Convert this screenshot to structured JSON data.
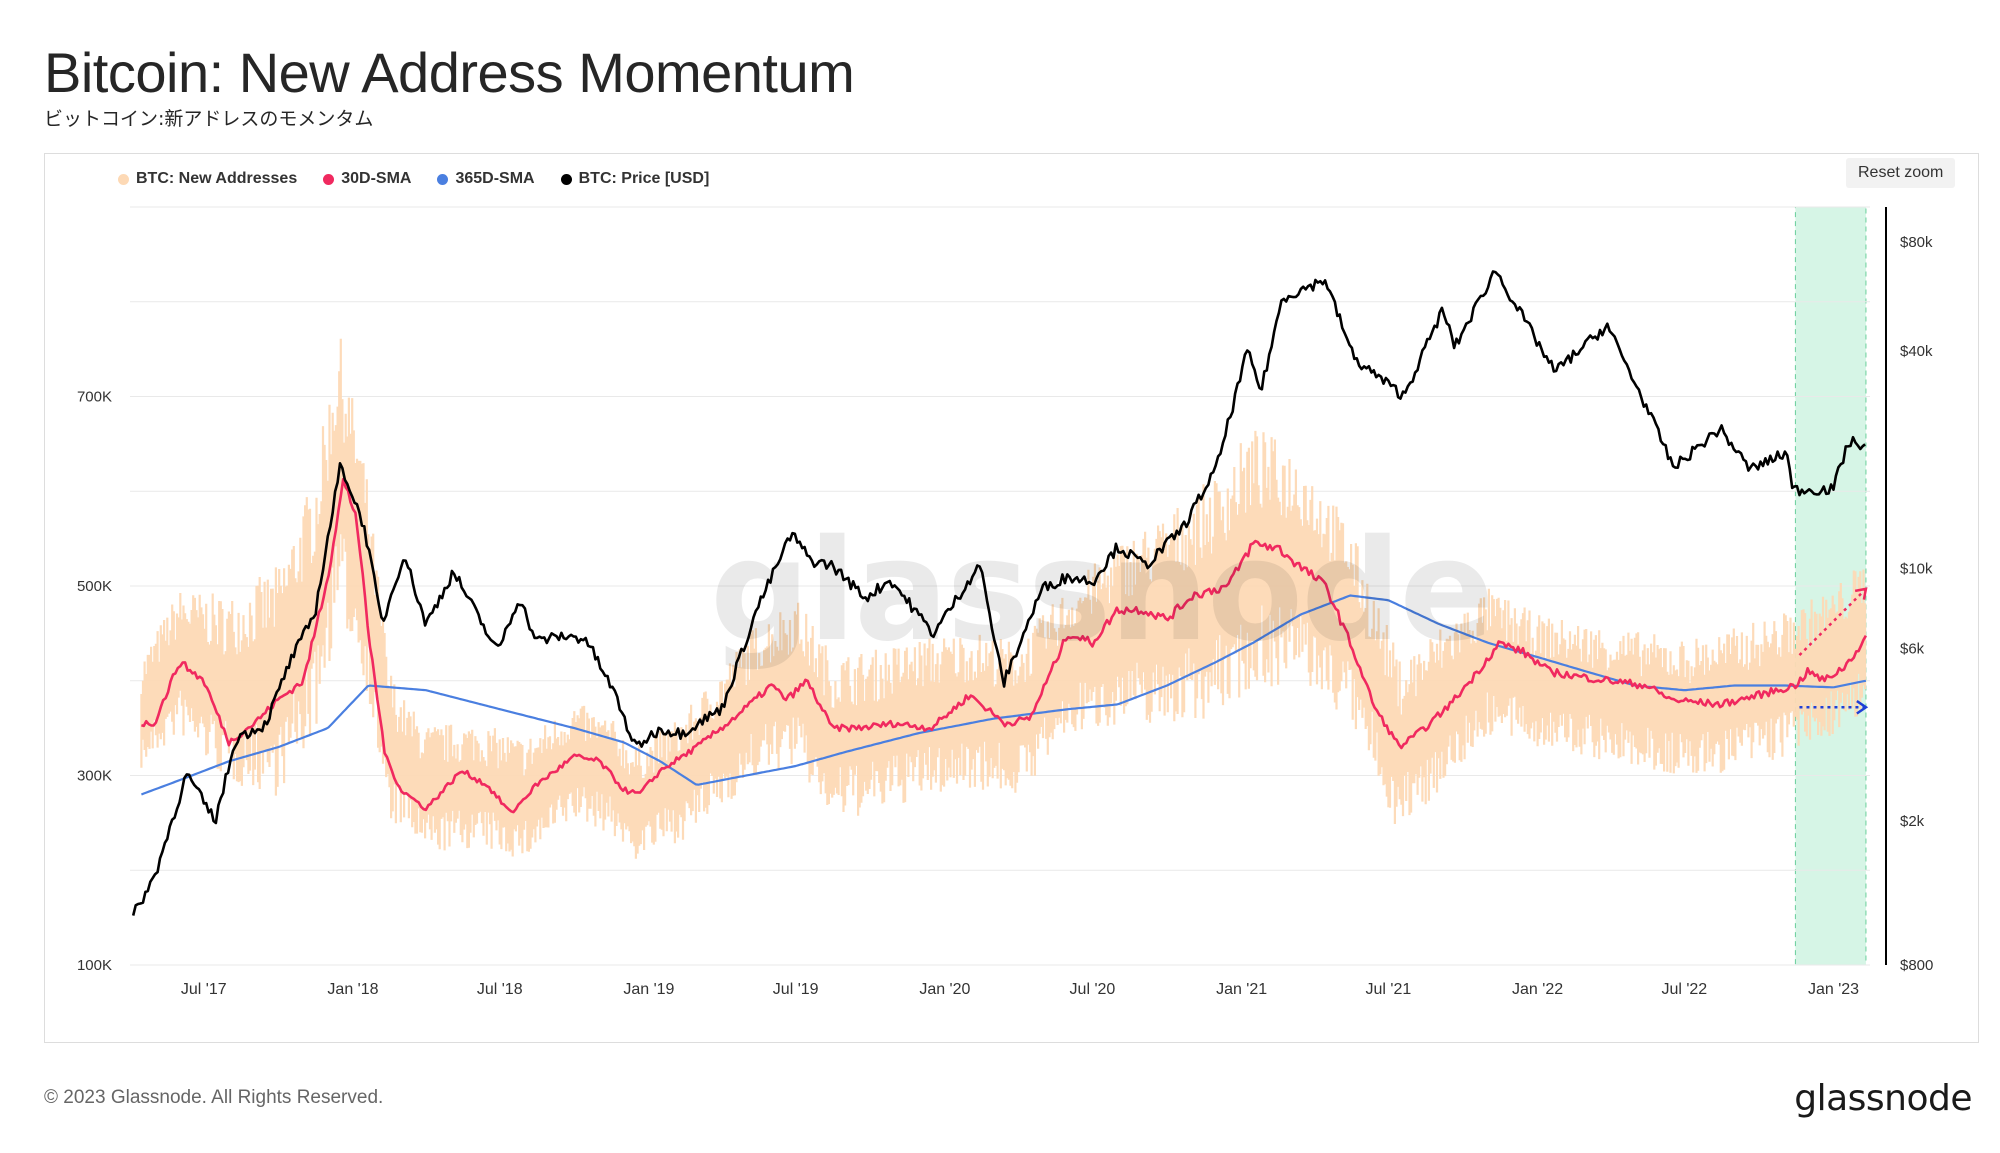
{
  "header": {
    "title": "Bitcoin: New Address Momentum",
    "subtitle": "ビットコイン:新アドレスのモメンタム"
  },
  "toolbar": {
    "reset_zoom_label": "Reset zoom"
  },
  "watermark": "glassnode",
  "footer": {
    "copyright": "© 2023 Glassnode. All Rights Reserved.",
    "brand": "glassnode"
  },
  "colors": {
    "new_addresses": "#fdd9b5",
    "sma30": "#f0295f",
    "sma365": "#4a7fe0",
    "price": "#000000",
    "highlight": "#d6f5e6",
    "arrow_red": "#f0295f",
    "arrow_blue": "#1f3fd6"
  },
  "chart_data": {
    "type": "line",
    "legend_position": "top-left",
    "grid": true,
    "x_range": [
      "2017-04-01",
      "2023-02-15"
    ],
    "x_ticks": [
      {
        "date": "2017-07-01",
        "label": "Jul '17"
      },
      {
        "date": "2018-01-01",
        "label": "Jan '18"
      },
      {
        "date": "2018-07-01",
        "label": "Jul '18"
      },
      {
        "date": "2019-01-01",
        "label": "Jan '19"
      },
      {
        "date": "2019-07-01",
        "label": "Jul '19"
      },
      {
        "date": "2020-01-01",
        "label": "Jan '20"
      },
      {
        "date": "2020-07-01",
        "label": "Jul '20"
      },
      {
        "date": "2021-01-01",
        "label": "Jan '21"
      },
      {
        "date": "2021-07-01",
        "label": "Jul '21"
      },
      {
        "date": "2022-01-01",
        "label": "Jan '22"
      },
      {
        "date": "2022-07-01",
        "label": "Jul '22"
      },
      {
        "date": "2023-01-01",
        "label": "Jan '23"
      }
    ],
    "y_left": {
      "range": [
        100000,
        900000
      ],
      "ticks": [
        {
          "value": 100000,
          "label": "100K"
        },
        {
          "value": 300000,
          "label": "300K"
        },
        {
          "value": 500000,
          "label": "500K"
        },
        {
          "value": 700000,
          "label": "700K"
        }
      ]
    },
    "y_right": {
      "scale": "log",
      "range": [
        800,
        100000
      ],
      "ticks": [
        {
          "value": 800,
          "label": "$800"
        },
        {
          "value": 2000,
          "label": "$2k"
        },
        {
          "value": 6000,
          "label": "$6k"
        },
        {
          "value": 10000,
          "label": "$10k"
        },
        {
          "value": 40000,
          "label": "$40k"
        },
        {
          "value": 80000,
          "label": "$80k"
        }
      ]
    },
    "highlight_range": [
      "2022-11-15",
      "2023-02-10"
    ],
    "series": [
      {
        "name": "BTC: New Addresses",
        "axis": "left",
        "kind": "band",
        "points": [
          [
            "2017-04-15",
            365000
          ],
          [
            "2017-06-01",
            420000
          ],
          [
            "2017-08-01",
            390000
          ],
          [
            "2017-10-01",
            400000
          ],
          [
            "2017-11-15",
            480000
          ],
          [
            "2017-12-15",
            620000
          ],
          [
            "2018-01-15",
            520000
          ],
          [
            "2018-02-15",
            330000
          ],
          [
            "2018-04-01",
            285000
          ],
          [
            "2018-06-01",
            290000
          ],
          [
            "2018-08-01",
            275000
          ],
          [
            "2018-10-01",
            315000
          ],
          [
            "2018-11-15",
            300000
          ],
          [
            "2018-12-15",
            270000
          ],
          [
            "2019-02-15",
            300000
          ],
          [
            "2019-04-01",
            340000
          ],
          [
            "2019-05-15",
            380000
          ],
          [
            "2019-07-01",
            400000
          ],
          [
            "2019-08-15",
            340000
          ],
          [
            "2019-10-01",
            345000
          ],
          [
            "2019-12-01",
            360000
          ],
          [
            "2020-02-01",
            370000
          ],
          [
            "2020-04-01",
            360000
          ],
          [
            "2020-06-01",
            420000
          ],
          [
            "2020-08-01",
            450000
          ],
          [
            "2020-10-01",
            465000
          ],
          [
            "2020-12-01",
            490000
          ],
          [
            "2021-01-15",
            530000
          ],
          [
            "2021-03-15",
            520000
          ],
          [
            "2021-05-15",
            460000
          ],
          [
            "2021-07-15",
            330000
          ],
          [
            "2021-09-01",
            370000
          ],
          [
            "2021-11-01",
            420000
          ],
          [
            "2022-01-01",
            400000
          ],
          [
            "2022-03-01",
            390000
          ],
          [
            "2022-05-01",
            380000
          ],
          [
            "2022-07-01",
            370000
          ],
          [
            "2022-09-01",
            380000
          ],
          [
            "2022-11-01",
            395000
          ],
          [
            "2023-01-01",
            420000
          ],
          [
            "2023-02-10",
            450000
          ]
        ],
        "spread": [
          [
            "2017-04-15",
            60000
          ],
          [
            "2017-12-15",
            150000
          ],
          [
            "2018-03-01",
            70000
          ],
          [
            "2019-01-01",
            60000
          ],
          [
            "2019-07-01",
            90000
          ],
          [
            "2020-06-01",
            80000
          ],
          [
            "2021-01-15",
            140000
          ],
          [
            "2021-06-01",
            100000
          ],
          [
            "2022-01-01",
            70000
          ],
          [
            "2023-02-10",
            80000
          ]
        ]
      },
      {
        "name": "30D-SMA",
        "axis": "left",
        "kind": "line",
        "points": [
          [
            "2017-04-15",
            355000
          ],
          [
            "2017-05-01",
            355000
          ],
          [
            "2017-06-01",
            420000
          ],
          [
            "2017-07-01",
            400000
          ],
          [
            "2017-08-01",
            335000
          ],
          [
            "2017-09-01",
            355000
          ],
          [
            "2017-10-01",
            380000
          ],
          [
            "2017-11-01",
            400000
          ],
          [
            "2017-12-01",
            510000
          ],
          [
            "2017-12-20",
            610000
          ],
          [
            "2018-01-05",
            575000
          ],
          [
            "2018-01-20",
            450000
          ],
          [
            "2018-02-10",
            320000
          ],
          [
            "2018-03-01",
            285000
          ],
          [
            "2018-04-01",
            265000
          ],
          [
            "2018-05-15",
            305000
          ],
          [
            "2018-06-15",
            290000
          ],
          [
            "2018-07-15",
            260000
          ],
          [
            "2018-08-15",
            290000
          ],
          [
            "2018-10-01",
            320000
          ],
          [
            "2018-11-01",
            315000
          ],
          [
            "2018-12-01",
            285000
          ],
          [
            "2018-12-20",
            280000
          ],
          [
            "2019-01-15",
            305000
          ],
          [
            "2019-03-01",
            330000
          ],
          [
            "2019-04-15",
            360000
          ],
          [
            "2019-06-01",
            395000
          ],
          [
            "2019-06-20",
            380000
          ],
          [
            "2019-07-15",
            400000
          ],
          [
            "2019-08-15",
            350000
          ],
          [
            "2019-09-15",
            350000
          ],
          [
            "2019-11-01",
            355000
          ],
          [
            "2019-12-15",
            350000
          ],
          [
            "2020-02-01",
            385000
          ],
          [
            "2020-03-15",
            355000
          ],
          [
            "2020-04-15",
            360000
          ],
          [
            "2020-06-01",
            450000
          ],
          [
            "2020-07-01",
            440000
          ],
          [
            "2020-08-01",
            475000
          ],
          [
            "2020-09-01",
            475000
          ],
          [
            "2020-10-01",
            465000
          ],
          [
            "2020-11-01",
            490000
          ],
          [
            "2020-12-15",
            500000
          ],
          [
            "2021-01-15",
            545000
          ],
          [
            "2021-02-15",
            540000
          ],
          [
            "2021-03-15",
            520000
          ],
          [
            "2021-04-15",
            500000
          ],
          [
            "2021-05-15",
            440000
          ],
          [
            "2021-06-15",
            370000
          ],
          [
            "2021-07-15",
            330000
          ],
          [
            "2021-08-15",
            350000
          ],
          [
            "2021-09-15",
            375000
          ],
          [
            "2021-10-15",
            405000
          ],
          [
            "2021-11-15",
            440000
          ],
          [
            "2021-12-15",
            430000
          ],
          [
            "2022-01-15",
            410000
          ],
          [
            "2022-02-15",
            405000
          ],
          [
            "2022-04-01",
            400000
          ],
          [
            "2022-05-15",
            395000
          ],
          [
            "2022-06-15",
            380000
          ],
          [
            "2022-08-15",
            375000
          ],
          [
            "2022-10-01",
            385000
          ],
          [
            "2022-11-15",
            395000
          ],
          [
            "2022-12-01",
            410000
          ],
          [
            "2022-12-20",
            400000
          ],
          [
            "2023-01-15",
            415000
          ],
          [
            "2023-02-10",
            445000
          ]
        ]
      },
      {
        "name": "365D-SMA",
        "axis": "left",
        "kind": "line",
        "points": [
          [
            "2017-04-15",
            280000
          ],
          [
            "2017-06-01",
            295000
          ],
          [
            "2017-08-01",
            315000
          ],
          [
            "2017-10-01",
            330000
          ],
          [
            "2017-12-01",
            350000
          ],
          [
            "2018-01-20",
            395000
          ],
          [
            "2018-04-01",
            390000
          ],
          [
            "2018-07-01",
            370000
          ],
          [
            "2018-10-01",
            350000
          ],
          [
            "2018-12-01",
            335000
          ],
          [
            "2019-01-15",
            315000
          ],
          [
            "2019-03-01",
            290000
          ],
          [
            "2019-05-01",
            300000
          ],
          [
            "2019-07-01",
            310000
          ],
          [
            "2019-09-01",
            325000
          ],
          [
            "2019-12-01",
            345000
          ],
          [
            "2020-03-01",
            360000
          ],
          [
            "2020-06-01",
            370000
          ],
          [
            "2020-08-01",
            375000
          ],
          [
            "2020-10-01",
            395000
          ],
          [
            "2020-12-01",
            420000
          ],
          [
            "2021-01-15",
            440000
          ],
          [
            "2021-03-15",
            470000
          ],
          [
            "2021-05-15",
            490000
          ],
          [
            "2021-07-01",
            485000
          ],
          [
            "2021-09-01",
            460000
          ],
          [
            "2021-11-01",
            440000
          ],
          [
            "2022-01-01",
            425000
          ],
          [
            "2022-03-01",
            410000
          ],
          [
            "2022-05-01",
            395000
          ],
          [
            "2022-07-01",
            390000
          ],
          [
            "2022-09-01",
            395000
          ],
          [
            "2022-11-01",
            395000
          ],
          [
            "2023-01-01",
            393000
          ],
          [
            "2023-02-10",
            400000
          ]
        ]
      },
      {
        "name": "BTC: Price [USD]",
        "axis": "right",
        "kind": "line",
        "points": [
          [
            "2017-04-05",
            1100
          ],
          [
            "2017-05-01",
            1400
          ],
          [
            "2017-06-10",
            2700
          ],
          [
            "2017-07-15",
            2000
          ],
          [
            "2017-08-10",
            3400
          ],
          [
            "2017-09-15",
            3700
          ],
          [
            "2017-10-15",
            5500
          ],
          [
            "2017-11-15",
            7500
          ],
          [
            "2017-12-17",
            19500
          ],
          [
            "2018-01-15",
            13000
          ],
          [
            "2018-02-06",
            7000
          ],
          [
            "2018-03-05",
            11000
          ],
          [
            "2018-04-01",
            7000
          ],
          [
            "2018-05-05",
            9800
          ],
          [
            "2018-06-28",
            5900
          ],
          [
            "2018-07-25",
            8300
          ],
          [
            "2018-08-15",
            6300
          ],
          [
            "2018-09-15",
            6500
          ],
          [
            "2018-10-15",
            6400
          ],
          [
            "2018-11-20",
            4500
          ],
          [
            "2018-12-15",
            3200
          ],
          [
            "2019-01-15",
            3600
          ],
          [
            "2019-02-10",
            3500
          ],
          [
            "2019-04-01",
            4100
          ],
          [
            "2019-05-15",
            7800
          ],
          [
            "2019-06-26",
            12500
          ],
          [
            "2019-07-20",
            10500
          ],
          [
            "2019-08-15",
            10200
          ],
          [
            "2019-09-25",
            8300
          ],
          [
            "2019-10-26",
            9300
          ],
          [
            "2019-12-18",
            6600
          ],
          [
            "2020-02-13",
            10300
          ],
          [
            "2020-03-13",
            4800
          ],
          [
            "2020-04-30",
            8800
          ],
          [
            "2020-06-01",
            9500
          ],
          [
            "2020-07-01",
            9200
          ],
          [
            "2020-08-01",
            11500
          ],
          [
            "2020-09-05",
            10200
          ],
          [
            "2020-10-21",
            13000
          ],
          [
            "2020-12-01",
            19000
          ],
          [
            "2021-01-08",
            40000
          ],
          [
            "2021-01-25",
            31000
          ],
          [
            "2021-02-20",
            56000
          ],
          [
            "2021-04-14",
            63000
          ],
          [
            "2021-05-20",
            38000
          ],
          [
            "2021-07-20",
            30000
          ],
          [
            "2021-09-06",
            52000
          ],
          [
            "2021-09-21",
            41000
          ],
          [
            "2021-11-10",
            67000
          ],
          [
            "2022-01-22",
            35000
          ],
          [
            "2022-03-28",
            47000
          ],
          [
            "2022-05-12",
            29000
          ],
          [
            "2022-06-18",
            19000
          ],
          [
            "2022-08-14",
            24400
          ],
          [
            "2022-09-20",
            18800
          ],
          [
            "2022-11-06",
            21000
          ],
          [
            "2022-11-10",
            16500
          ],
          [
            "2022-12-31",
            16550
          ],
          [
            "2023-01-20",
            22500
          ],
          [
            "2023-02-10",
            21800
          ]
        ]
      }
    ],
    "annotations": [
      {
        "kind": "dotted-arrow",
        "color_key": "arrow_red",
        "from": [
          "2022-11-20",
          427000
        ],
        "to": [
          "2023-02-10",
          497000
        ]
      },
      {
        "kind": "dotted-arrow",
        "color_key": "arrow_blue",
        "from": [
          "2022-11-20",
          372000
        ],
        "to": [
          "2023-02-10",
          372000
        ]
      }
    ]
  }
}
